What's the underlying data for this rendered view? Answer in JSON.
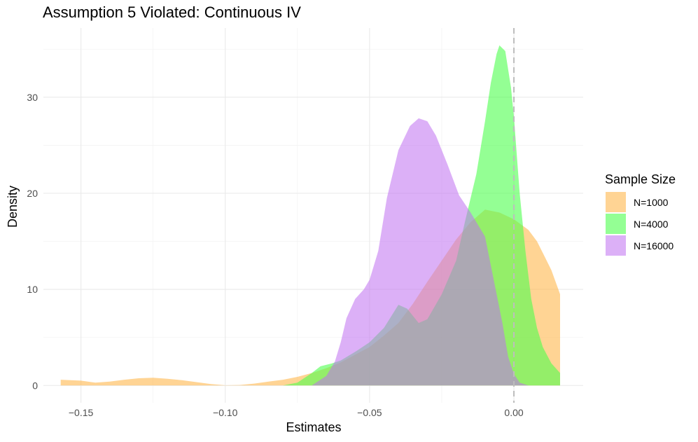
{
  "chart_data": {
    "type": "area",
    "title": "Assumption 5 Violated: Continuous IV",
    "xlabel": "Estimates",
    "ylabel": "Density",
    "xlim": [
      -0.163,
      0.024
    ],
    "ylim": [
      -1.8,
      37.2
    ],
    "x_ticks": [
      -0.15,
      -0.1,
      -0.05,
      0.0
    ],
    "x_tick_labels": [
      "−0.15",
      "−0.10",
      "−0.05",
      "0.00"
    ],
    "y_ticks": [
      0,
      10,
      20,
      30
    ],
    "y_tick_labels": [
      "0",
      "10",
      "20",
      "30"
    ],
    "grid": true,
    "reference_line": {
      "x": 0.0,
      "style": "dashed",
      "color": "#bdbdbd"
    },
    "legend": {
      "title": "Sample Size",
      "position": "right"
    },
    "series": [
      {
        "name": "N=1000",
        "color": "#FFB84D",
        "opacity": 0.6,
        "points": [
          [
            -0.157,
            0.6
          ],
          [
            -0.15,
            0.5
          ],
          [
            -0.145,
            0.3
          ],
          [
            -0.14,
            0.4
          ],
          [
            -0.135,
            0.6
          ],
          [
            -0.13,
            0.75
          ],
          [
            -0.125,
            0.8
          ],
          [
            -0.12,
            0.7
          ],
          [
            -0.115,
            0.55
          ],
          [
            -0.11,
            0.35
          ],
          [
            -0.105,
            0.15
          ],
          [
            -0.1,
            0.02
          ],
          [
            -0.095,
            0.05
          ],
          [
            -0.09,
            0.2
          ],
          [
            -0.085,
            0.4
          ],
          [
            -0.08,
            0.6
          ],
          [
            -0.075,
            0.9
          ],
          [
            -0.07,
            1.3
          ],
          [
            -0.065,
            1.8
          ],
          [
            -0.06,
            2.4
          ],
          [
            -0.055,
            3.2
          ],
          [
            -0.05,
            4.0
          ],
          [
            -0.045,
            5.2
          ],
          [
            -0.04,
            6.5
          ],
          [
            -0.035,
            8.5
          ],
          [
            -0.03,
            10.8
          ],
          [
            -0.025,
            13.0
          ],
          [
            -0.02,
            15.2
          ],
          [
            -0.015,
            17.0
          ],
          [
            -0.01,
            18.3
          ],
          [
            -0.005,
            18.0
          ],
          [
            0.0,
            17.3
          ],
          [
            0.005,
            16.2
          ],
          [
            0.008,
            15.0
          ],
          [
            0.01,
            13.8
          ],
          [
            0.013,
            12.0
          ],
          [
            0.016,
            9.5
          ],
          [
            0.016,
            0
          ]
        ]
      },
      {
        "name": "N=4000",
        "color": "#4DFF4D",
        "opacity": 0.6,
        "points": [
          [
            -0.08,
            0.0
          ],
          [
            -0.075,
            0.3
          ],
          [
            -0.07,
            1.3
          ],
          [
            -0.067,
            2.0
          ],
          [
            -0.063,
            2.3
          ],
          [
            -0.06,
            2.6
          ],
          [
            -0.055,
            3.5
          ],
          [
            -0.05,
            4.5
          ],
          [
            -0.045,
            6.0
          ],
          [
            -0.04,
            8.4
          ],
          [
            -0.037,
            8.0
          ],
          [
            -0.033,
            6.5
          ],
          [
            -0.03,
            6.9
          ],
          [
            -0.025,
            9.5
          ],
          [
            -0.02,
            13.0
          ],
          [
            -0.017,
            17.0
          ],
          [
            -0.013,
            22.0
          ],
          [
            -0.01,
            27.5
          ],
          [
            -0.008,
            31.5
          ],
          [
            -0.006,
            34.5
          ],
          [
            -0.005,
            35.4
          ],
          [
            -0.003,
            34.8
          ],
          [
            -0.001,
            31.0
          ],
          [
            0.0,
            28.0
          ],
          [
            0.002,
            20.0
          ],
          [
            0.004,
            14.0
          ],
          [
            0.006,
            9.0
          ],
          [
            0.008,
            6.0
          ],
          [
            0.01,
            4.0
          ],
          [
            0.013,
            2.3
          ],
          [
            0.016,
            1.3
          ],
          [
            0.016,
            0
          ]
        ]
      },
      {
        "name": "N=16000",
        "color": "#C070F0",
        "opacity": 0.55,
        "points": [
          [
            -0.07,
            0.0
          ],
          [
            -0.065,
            1.0
          ],
          [
            -0.062,
            2.5
          ],
          [
            -0.06,
            4.5
          ],
          [
            -0.058,
            7.0
          ],
          [
            -0.055,
            9.0
          ],
          [
            -0.052,
            10.0
          ],
          [
            -0.05,
            11.0
          ],
          [
            -0.047,
            14.0
          ],
          [
            -0.044,
            19.5
          ],
          [
            -0.04,
            24.5
          ],
          [
            -0.036,
            27.0
          ],
          [
            -0.033,
            27.8
          ],
          [
            -0.03,
            27.5
          ],
          [
            -0.027,
            26.0
          ],
          [
            -0.023,
            23.0
          ],
          [
            -0.019,
            19.8
          ],
          [
            -0.015,
            18.0
          ],
          [
            -0.01,
            15.5
          ],
          [
            -0.007,
            11.0
          ],
          [
            -0.004,
            6.5
          ],
          [
            -0.002,
            3.0
          ],
          [
            0.0,
            1.2
          ],
          [
            0.002,
            0.3
          ],
          [
            0.005,
            0.0
          ]
        ]
      }
    ]
  }
}
